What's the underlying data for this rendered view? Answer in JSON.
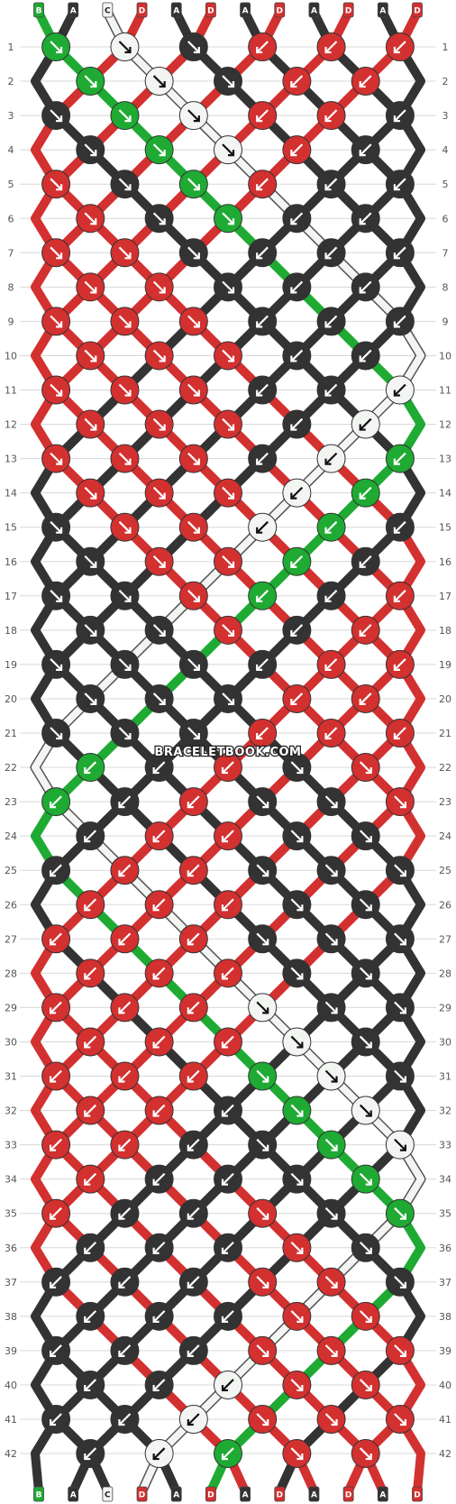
{
  "colors": {
    "A": "#333333",
    "B": "#1faa33",
    "C": "#f3f5f3",
    "D": "#d33030"
  },
  "strands_top": [
    "B",
    "A",
    "C",
    "D",
    "A",
    "D",
    "A",
    "D",
    "A",
    "D",
    "A",
    "D"
  ],
  "strands_bottom": [
    "B",
    "A",
    "C",
    "D",
    "A",
    "D",
    "A",
    "D",
    "A",
    "D",
    "A",
    "D"
  ],
  "rows": [
    "1",
    "2",
    "3",
    "4",
    "5",
    "6",
    "7",
    "8",
    "9",
    "10",
    "11",
    "12",
    "13",
    "14",
    "15",
    "16",
    "17",
    "18",
    "19",
    "20",
    "21",
    "22",
    "23",
    "24",
    "25",
    "26",
    "27",
    "28",
    "29",
    "30",
    "31",
    "32",
    "33",
    "34",
    "35",
    "36",
    "37",
    "38",
    "39",
    "40",
    "41",
    "42"
  ],
  "watermark": "BRACELETBOOK.COM",
  "knots": {
    "icons": [
      "forward-knot-icon",
      "backward-knot-icon"
    ]
  }
}
